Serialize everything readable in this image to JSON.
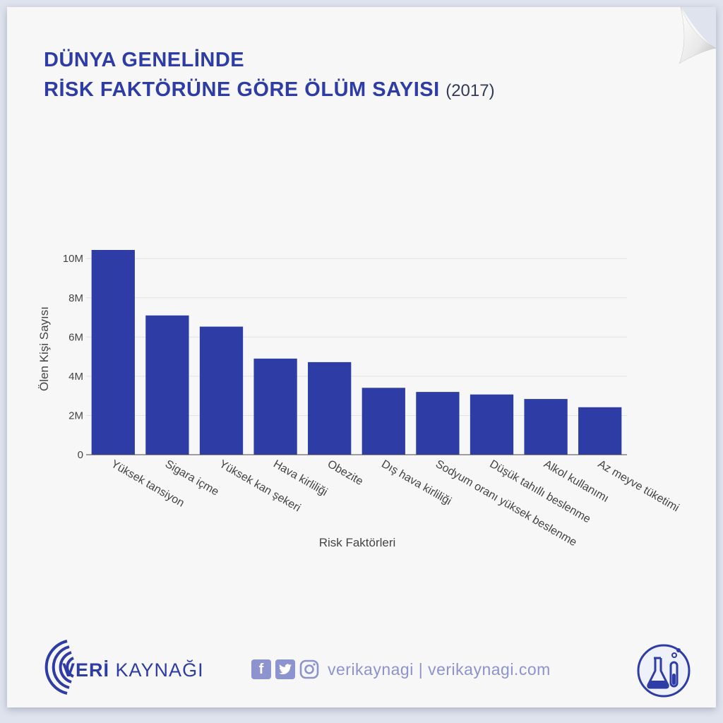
{
  "title": {
    "line1": "DÜNYA GENELİNDE",
    "line2": "RİSK FAKTÖRÜNE GÖRE ÖLÜM SAYISI",
    "year": "(2017)"
  },
  "chart_data": {
    "type": "bar",
    "categories": [
      "Yüksek tansiyon",
      "Sigara içme",
      "Yüksek kan şekeri",
      "Hava kirliliği",
      "Obezite",
      "Dış hava kirliliği",
      "Sodyum oranı yüksek beslenme",
      "Düşük tahıllı beslenme",
      "Alkol kullanımı",
      "Az meyve tüketimi"
    ],
    "values": [
      10440000,
      7100000,
      6530000,
      4900000,
      4720000,
      3410000,
      3200000,
      3070000,
      2840000,
      2420000
    ],
    "xlabel": "Risk Faktörleri",
    "ylabel": "Ölen Kişi Sayısı",
    "ylim": [
      0,
      10800000
    ],
    "yticks": [
      0,
      2000000,
      4000000,
      6000000,
      8000000,
      10000000
    ],
    "ytick_labels": [
      "0",
      "2M",
      "4M",
      "6M",
      "8M",
      "10M"
    ],
    "grid": true,
    "bar_color": "#2e3ca6"
  },
  "footer": {
    "brand_bold": "VERİ",
    "brand_light": " KAYNAĞI",
    "social_text": "verikaynagi | verikaynagi.com",
    "icons": [
      "facebook-icon",
      "twitter-icon",
      "instagram-icon",
      "lab-flask-icon"
    ],
    "accent": "#8c93cf"
  }
}
